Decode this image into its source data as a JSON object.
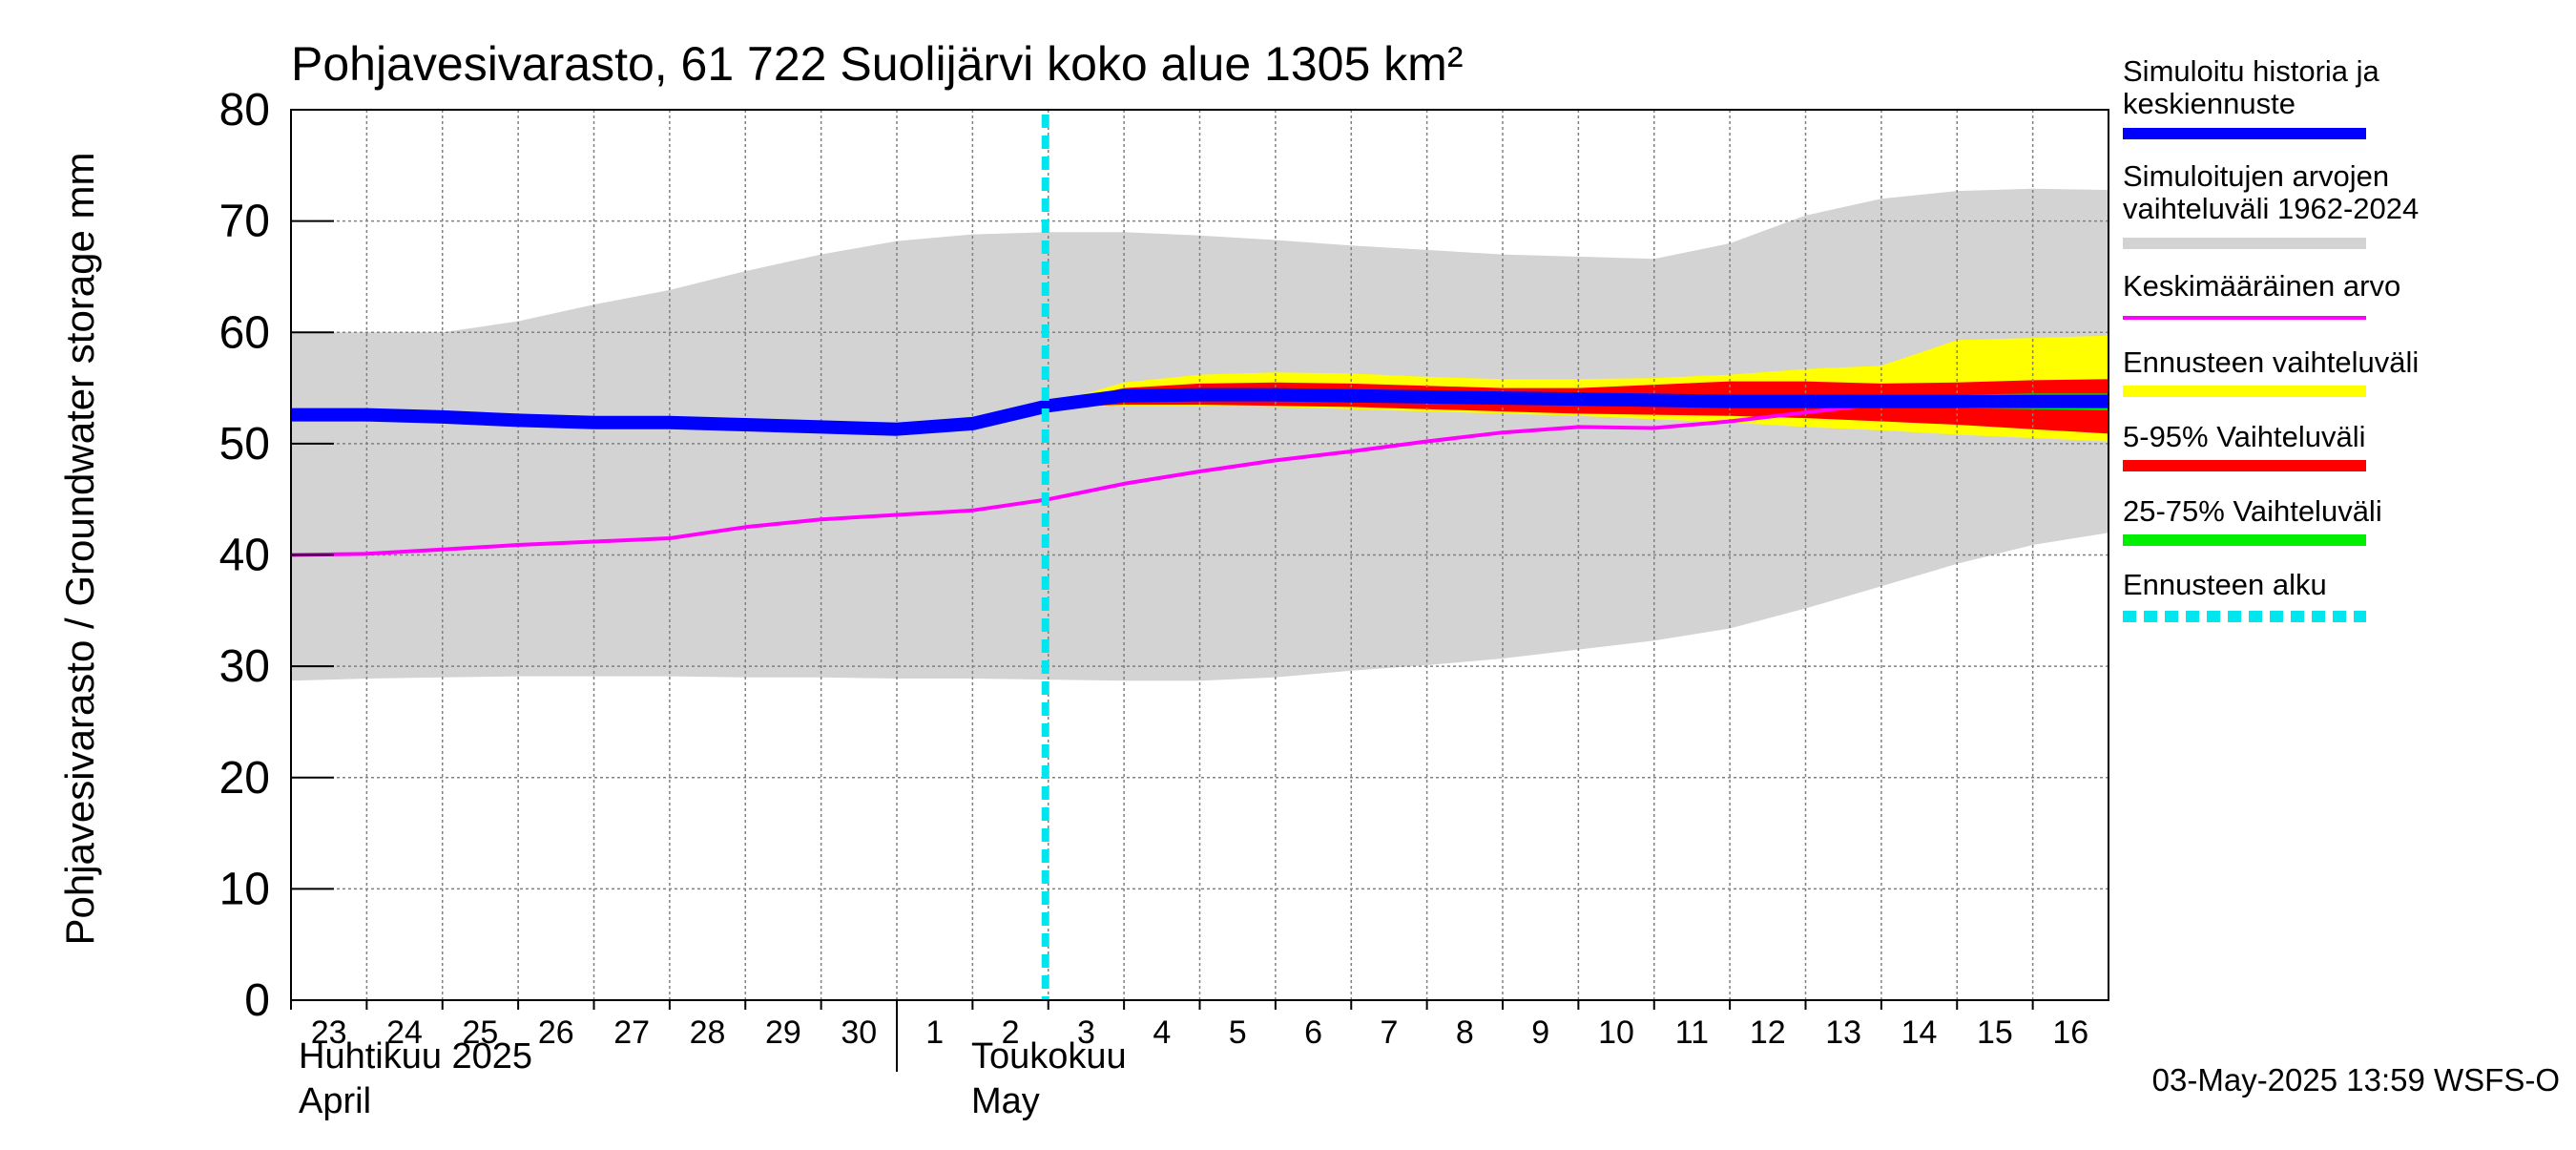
{
  "chart_data": {
    "type": "area",
    "title": "Pohjavesivarasto, 61 722 Suolijärvi koko alue 1305 km²",
    "ylabel": "Pohjavesivarasto / Groundwater storage   mm",
    "ylim": [
      0,
      80
    ],
    "yticks": [
      0,
      10,
      20,
      30,
      40,
      50,
      60,
      70,
      80
    ],
    "grid": true,
    "legend_position": "right",
    "x_day_labels": [
      "23",
      "24",
      "25",
      "26",
      "27",
      "28",
      "29",
      "30",
      "1",
      "2",
      "3",
      "4",
      "5",
      "6",
      "7",
      "8",
      "9",
      "10",
      "11",
      "12",
      "13",
      "14",
      "15",
      "16"
    ],
    "month_labels": [
      {
        "fi": "Huhtikuu  2025",
        "en": "April"
      },
      {
        "fi": "Toukokuu",
        "en": "May"
      }
    ],
    "forecast_start_index": 10,
    "x": [
      0,
      1,
      2,
      3,
      4,
      5,
      6,
      7,
      8,
      9,
      10,
      11,
      12,
      13,
      14,
      15,
      16,
      17,
      18,
      19,
      20,
      21,
      22,
      23,
      24
    ],
    "series": [
      {
        "name": "Simuloitujen arvojen vaihteluväli 1962-2024",
        "kind": "band",
        "color": "#d3d3d3",
        "lower": [
          28.7,
          28.9,
          29.0,
          29.1,
          29.1,
          29.1,
          29.0,
          29.0,
          28.9,
          28.9,
          28.8,
          28.7,
          28.7,
          29.0,
          29.6,
          30.1,
          30.7,
          31.5,
          32.3,
          33.4,
          35.2,
          37.2,
          39.2,
          40.9,
          42.0
        ],
        "upper": [
          60.0,
          60.0,
          60.0,
          61.0,
          62.5,
          63.8,
          65.5,
          67.0,
          68.2,
          68.8,
          69.0,
          69.0,
          68.7,
          68.3,
          67.8,
          67.4,
          67.0,
          66.8,
          66.6,
          68.0,
          70.5,
          72.0,
          72.7,
          72.9,
          72.8
        ]
      },
      {
        "name": "Ennusteen vaihteluväli",
        "kind": "band",
        "color": "#ffff00",
        "start_index": 10,
        "lower": [
          53.3,
          53.4,
          53.4,
          53.3,
          53.1,
          52.9,
          52.7,
          52.5,
          52.2,
          51.9,
          51.5,
          51.2,
          50.8,
          50.5,
          50.2
        ],
        "upper": [
          53.5,
          55.5,
          56.2,
          56.4,
          56.3,
          56.0,
          55.8,
          55.8,
          55.9,
          56.2,
          56.7,
          57.0,
          59.3,
          59.5,
          59.7
        ]
      },
      {
        "name": "5-95% Vaihteluväli",
        "kind": "band",
        "color": "#ff0000",
        "start_index": 10,
        "lower": [
          53.3,
          53.5,
          53.5,
          53.4,
          53.3,
          53.1,
          52.9,
          52.7,
          52.6,
          52.5,
          52.3,
          52.0,
          51.7,
          51.3,
          50.9
        ],
        "upper": [
          53.5,
          55.0,
          55.4,
          55.5,
          55.4,
          55.2,
          55.0,
          55.0,
          55.3,
          55.6,
          55.6,
          55.4,
          55.5,
          55.7,
          55.8
        ]
      },
      {
        "name": "25-75% Vaihteluväli",
        "kind": "band",
        "color": "#00ee00",
        "start_index": 10,
        "lower": [
          53.4,
          54.0,
          54.2,
          54.1,
          54.0,
          53.9,
          53.8,
          53.7,
          53.6,
          53.5,
          53.4,
          53.3,
          53.2,
          53.1,
          53.0
        ],
        "upper": [
          53.5,
          54.6,
          54.9,
          54.9,
          54.8,
          54.7,
          54.6,
          54.5,
          54.4,
          54.3,
          54.3,
          54.4,
          54.4,
          54.5,
          54.5
        ]
      },
      {
        "name": "Keskimääräinen arvo",
        "kind": "line",
        "color": "#ff00ff",
        "values": [
          40.0,
          40.1,
          40.5,
          40.9,
          41.2,
          41.5,
          42.5,
          43.2,
          43.6,
          44.0,
          45.0,
          46.4,
          47.5,
          48.5,
          49.3,
          50.2,
          51.0,
          51.5,
          51.4,
          52.0,
          52.8,
          53.6,
          53.9,
          53.7,
          53.5
        ]
      },
      {
        "name": "Simuloitu historia ja keskiennuste",
        "kind": "line",
        "color": "#0000ff",
        "values": [
          52.6,
          52.6,
          52.4,
          52.1,
          51.9,
          51.9,
          51.7,
          51.5,
          51.3,
          51.8,
          53.4,
          54.3,
          54.4,
          54.4,
          54.3,
          54.2,
          54.1,
          54.0,
          53.9,
          53.8,
          53.8,
          53.8,
          53.8,
          53.8,
          53.8
        ]
      }
    ]
  },
  "legend": [
    {
      "label_lines": [
        "Simuloitu historia ja",
        "keskiennuste"
      ],
      "color": "#0000ff",
      "style": "solid"
    },
    {
      "label_lines": [
        "Simuloitujen arvojen",
        "vaihteluväli 1962-2024"
      ],
      "color": "#d3d3d3",
      "style": "solid"
    },
    {
      "label_lines": [
        "Keskimääräinen arvo"
      ],
      "color": "#ff00ff",
      "style": "thin"
    },
    {
      "label_lines": [
        "Ennusteen vaihteluväli"
      ],
      "color": "#ffff00",
      "style": "solid"
    },
    {
      "label_lines": [
        "5-95% Vaihteluväli"
      ],
      "color": "#ff0000",
      "style": "solid"
    },
    {
      "label_lines": [
        "25-75% Vaihteluväli"
      ],
      "color": "#00ee00",
      "style": "solid"
    },
    {
      "label_lines": [
        "Ennusteen alku"
      ],
      "color": "#00e5ee",
      "style": "dashed"
    }
  ],
  "footer": "03-May-2025 13:59 WSFS-O",
  "colors": {
    "forecast_start_line": "#00e5ee",
    "grid": "#808080"
  }
}
